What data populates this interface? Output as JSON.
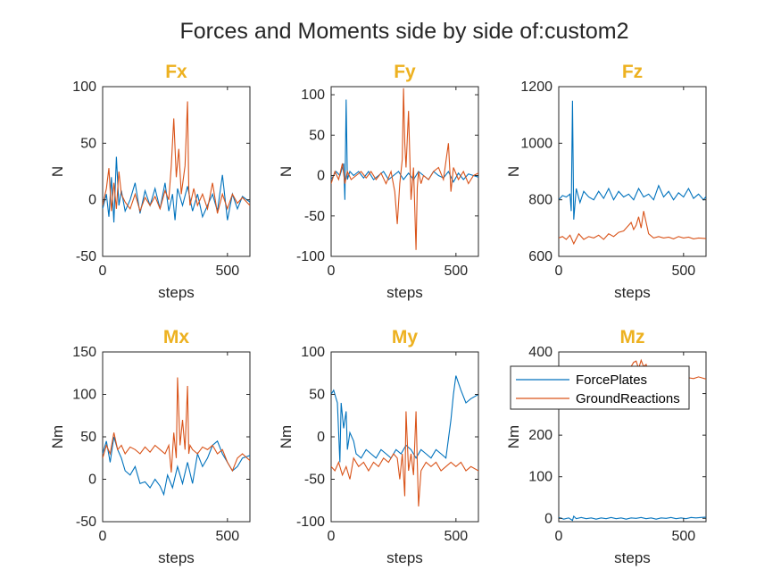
{
  "figure": {
    "suptitle": "Forces and Moments side by side of:custom2",
    "colors": {
      "title": "#EDB120",
      "ForcePlates": "#0072BD",
      "GroundReactions": "#D95319"
    },
    "legend": {
      "location": "top-right of Mz panel",
      "entries": [
        "ForcePlates",
        "GroundReactions"
      ]
    }
  },
  "chart_data": [
    {
      "type": "line",
      "title": "Fx",
      "xlabel": "steps",
      "ylabel": "N",
      "xlim": [
        0,
        590
      ],
      "ylim": [
        -50,
        100
      ],
      "xticks": [
        0,
        500
      ],
      "yticks": [
        -50,
        0,
        50,
        100
      ],
      "series": [
        {
          "name": "ForcePlates",
          "x": [
            0,
            15,
            25,
            35,
            45,
            55,
            65,
            75,
            90,
            110,
            130,
            150,
            170,
            190,
            210,
            230,
            250,
            265,
            280,
            290,
            300,
            320,
            340,
            360,
            380,
            400,
            420,
            440,
            460,
            480,
            500,
            520,
            540,
            560,
            590
          ],
          "y": [
            -8,
            5,
            -15,
            20,
            -20,
            38,
            -5,
            8,
            -10,
            0,
            15,
            -12,
            8,
            -5,
            10,
            -8,
            15,
            -10,
            5,
            -18,
            10,
            -5,
            12,
            -10,
            5,
            -15,
            -5,
            5,
            -10,
            22,
            -18,
            5,
            -8,
            3,
            -2
          ]
        },
        {
          "name": "GroundReactions",
          "x": [
            0,
            15,
            25,
            35,
            45,
            55,
            65,
            75,
            90,
            110,
            130,
            150,
            170,
            190,
            210,
            230,
            250,
            265,
            275,
            285,
            295,
            305,
            315,
            330,
            340,
            345,
            350,
            365,
            380,
            400,
            420,
            440,
            460,
            480,
            500,
            520,
            540,
            560,
            590
          ],
          "y": [
            -5,
            10,
            28,
            -10,
            15,
            -8,
            25,
            5,
            -2,
            -8,
            5,
            -10,
            2,
            -5,
            3,
            -8,
            8,
            0,
            30,
            72,
            20,
            45,
            5,
            30,
            87,
            10,
            -5,
            10,
            -5,
            5,
            -8,
            15,
            -12,
            5,
            -8,
            5,
            -3,
            2,
            -5
          ]
        }
      ]
    },
    {
      "type": "line",
      "title": "Fy",
      "xlabel": "steps",
      "ylabel": "N",
      "xlim": [
        0,
        590
      ],
      "ylim": [
        -100,
        110
      ],
      "xticks": [
        0,
        500
      ],
      "yticks": [
        -100,
        -50,
        0,
        50,
        100
      ],
      "series": [
        {
          "name": "ForcePlates",
          "x": [
            0,
            20,
            35,
            50,
            55,
            60,
            65,
            75,
            90,
            110,
            130,
            150,
            170,
            190,
            210,
            230,
            250,
            270,
            290,
            310,
            330,
            350,
            370,
            390,
            410,
            430,
            450,
            470,
            490,
            510,
            530,
            550,
            570,
            590
          ],
          "y": [
            -5,
            5,
            0,
            15,
            -30,
            94,
            -5,
            5,
            0,
            5,
            -3,
            5,
            -5,
            0,
            5,
            -5,
            0,
            5,
            -5,
            3,
            -5,
            5,
            0,
            -5,
            5,
            0,
            -3,
            5,
            -8,
            3,
            -5,
            2,
            0,
            -2
          ]
        },
        {
          "name": "GroundReactions",
          "x": [
            0,
            15,
            30,
            45,
            55,
            65,
            80,
            100,
            120,
            140,
            160,
            180,
            200,
            220,
            240,
            255,
            265,
            275,
            285,
            290,
            295,
            300,
            310,
            320,
            330,
            340,
            345,
            350,
            360,
            370,
            390,
            410,
            430,
            450,
            470,
            480,
            490,
            510,
            530,
            550,
            570,
            590
          ],
          "y": [
            -10,
            5,
            -5,
            15,
            -10,
            5,
            -5,
            0,
            5,
            -3,
            5,
            -5,
            3,
            -10,
            5,
            -20,
            -60,
            -10,
            20,
            108,
            40,
            10,
            80,
            -30,
            10,
            -92,
            -15,
            5,
            -10,
            0,
            -5,
            5,
            10,
            -5,
            40,
            -20,
            10,
            -5,
            5,
            -10,
            0,
            3
          ]
        }
      ]
    },
    {
      "type": "line",
      "title": "Fz",
      "xlabel": "steps",
      "ylabel": "N",
      "xlim": [
        0,
        590
      ],
      "ylim": [
        600,
        1200
      ],
      "xticks": [
        0,
        500
      ],
      "yticks": [
        600,
        800,
        1000,
        1200
      ],
      "series": [
        {
          "name": "ForcePlates",
          "x": [
            0,
            15,
            30,
            45,
            50,
            55,
            60,
            70,
            85,
            100,
            120,
            140,
            160,
            180,
            200,
            220,
            240,
            260,
            280,
            300,
            320,
            340,
            360,
            380,
            400,
            420,
            440,
            460,
            480,
            500,
            520,
            540,
            560,
            580,
            590
          ],
          "y": [
            800,
            815,
            810,
            820,
            760,
            1150,
            730,
            840,
            790,
            830,
            810,
            800,
            830,
            805,
            840,
            800,
            830,
            810,
            820,
            800,
            840,
            810,
            820,
            800,
            850,
            810,
            830,
            800,
            825,
            810,
            840,
            805,
            820,
            800,
            812
          ]
        },
        {
          "name": "GroundReactions",
          "x": [
            0,
            15,
            30,
            45,
            60,
            80,
            100,
            120,
            140,
            160,
            180,
            200,
            220,
            240,
            260,
            280,
            290,
            300,
            310,
            320,
            330,
            340,
            350,
            360,
            380,
            400,
            420,
            440,
            460,
            480,
            500,
            520,
            540,
            560,
            590
          ],
          "y": [
            665,
            670,
            660,
            675,
            645,
            680,
            660,
            670,
            665,
            675,
            660,
            680,
            670,
            685,
            690,
            710,
            720,
            695,
            710,
            740,
            700,
            760,
            720,
            680,
            665,
            670,
            665,
            668,
            662,
            670,
            665,
            668,
            662,
            665,
            663
          ]
        }
      ]
    },
    {
      "type": "line",
      "title": "Mx",
      "xlabel": "steps",
      "ylabel": "Nm",
      "xlim": [
        0,
        590
      ],
      "ylim": [
        -50,
        150
      ],
      "xticks": [
        0,
        500
      ],
      "yticks": [
        -50,
        0,
        50,
        100,
        150
      ],
      "series": [
        {
          "name": "ForcePlates",
          "x": [
            0,
            15,
            30,
            45,
            60,
            75,
            90,
            110,
            130,
            150,
            170,
            190,
            210,
            230,
            245,
            260,
            280,
            300,
            320,
            340,
            360,
            380,
            400,
            420,
            440,
            460,
            480,
            500,
            520,
            540,
            560,
            590
          ],
          "y": [
            30,
            45,
            20,
            50,
            35,
            25,
            10,
            5,
            15,
            -5,
            -3,
            -10,
            0,
            -8,
            -18,
            5,
            -10,
            15,
            -5,
            20,
            -5,
            30,
            15,
            25,
            40,
            45,
            30,
            20,
            10,
            15,
            25,
            28
          ]
        },
        {
          "name": "GroundReactions",
          "x": [
            0,
            15,
            30,
            45,
            60,
            75,
            90,
            110,
            130,
            150,
            170,
            190,
            210,
            230,
            250,
            265,
            275,
            285,
            295,
            300,
            310,
            320,
            330,
            340,
            345,
            350,
            360,
            380,
            400,
            420,
            440,
            460,
            480,
            500,
            520,
            540,
            560,
            590
          ],
          "y": [
            25,
            40,
            30,
            55,
            35,
            40,
            30,
            38,
            35,
            30,
            38,
            32,
            40,
            35,
            30,
            40,
            8,
            55,
            25,
            120,
            40,
            70,
            35,
            110,
            30,
            40,
            35,
            30,
            38,
            35,
            40,
            30,
            35,
            20,
            10,
            25,
            30,
            22
          ]
        }
      ]
    },
    {
      "type": "line",
      "title": "My",
      "xlabel": "steps",
      "ylabel": "Nm",
      "xlim": [
        0,
        590
      ],
      "ylim": [
        -100,
        100
      ],
      "xticks": [
        0,
        500
      ],
      "yticks": [
        -100,
        -50,
        0,
        50,
        100
      ],
      "series": [
        {
          "name": "ForcePlates",
          "x": [
            0,
            10,
            25,
            35,
            40,
            50,
            60,
            65,
            75,
            90,
            100,
            120,
            140,
            160,
            180,
            200,
            220,
            240,
            260,
            280,
            300,
            320,
            340,
            360,
            380,
            400,
            420,
            440,
            460,
            480,
            490,
            500,
            520,
            540,
            560,
            590
          ],
          "y": [
            50,
            55,
            40,
            -30,
            40,
            10,
            30,
            -15,
            5,
            -5,
            -20,
            -25,
            -15,
            -20,
            -25,
            -15,
            -20,
            -25,
            -15,
            -20,
            -10,
            -15,
            -25,
            -15,
            -20,
            -25,
            -15,
            -20,
            -25,
            20,
            50,
            72,
            55,
            40,
            45,
            50
          ]
        },
        {
          "name": "GroundReactions",
          "x": [
            0,
            15,
            30,
            45,
            60,
            75,
            90,
            110,
            130,
            150,
            170,
            190,
            210,
            230,
            250,
            265,
            275,
            285,
            295,
            300,
            310,
            320,
            330,
            340,
            345,
            350,
            360,
            380,
            400,
            420,
            440,
            460,
            480,
            500,
            520,
            540,
            560,
            590
          ],
          "y": [
            -35,
            -40,
            -30,
            -45,
            -35,
            -50,
            -25,
            -35,
            -30,
            -40,
            -30,
            -35,
            -25,
            -30,
            -20,
            -25,
            -50,
            -20,
            -70,
            30,
            -40,
            -20,
            -45,
            30,
            -30,
            -82,
            -40,
            -30,
            -35,
            -30,
            -40,
            -35,
            -30,
            -35,
            -30,
            -40,
            -35,
            -40
          ]
        }
      ]
    },
    {
      "type": "line",
      "title": "Mz",
      "xlabel": "steps",
      "ylabel": "Nm",
      "xlim": [
        0,
        590
      ],
      "ylim": [
        -8,
        400
      ],
      "xticks": [
        0,
        500
      ],
      "yticks": [
        0,
        100,
        200,
        300,
        400
      ],
      "series": [
        {
          "name": "ForcePlates",
          "x": [
            0,
            20,
            40,
            55,
            60,
            70,
            90,
            110,
            130,
            150,
            170,
            190,
            210,
            230,
            250,
            270,
            290,
            310,
            330,
            350,
            370,
            390,
            410,
            430,
            450,
            470,
            490,
            510,
            530,
            550,
            570,
            590
          ],
          "y": [
            2,
            -2,
            1,
            -5,
            5,
            -1,
            2,
            -1,
            1,
            -2,
            1,
            -1,
            2,
            -1,
            1,
            -2,
            1,
            0,
            2,
            -1,
            1,
            -2,
            1,
            0,
            2,
            -1,
            1,
            -1,
            2,
            1,
            2,
            3
          ]
        },
        {
          "name": "GroundReactions",
          "x": [
            0,
            30,
            60,
            100,
            140,
            180,
            220,
            260,
            280,
            290,
            300,
            310,
            320,
            330,
            340,
            350,
            360,
            380,
            400,
            420,
            440,
            460,
            480,
            500,
            520,
            540,
            560,
            590
          ],
          "y": [
            335,
            338,
            332,
            340,
            336,
            342,
            338,
            345,
            355,
            365,
            375,
            378,
            360,
            380,
            365,
            370,
            350,
            340,
            338,
            342,
            336,
            340,
            338,
            342,
            338,
            336,
            340,
            335
          ]
        }
      ]
    }
  ]
}
